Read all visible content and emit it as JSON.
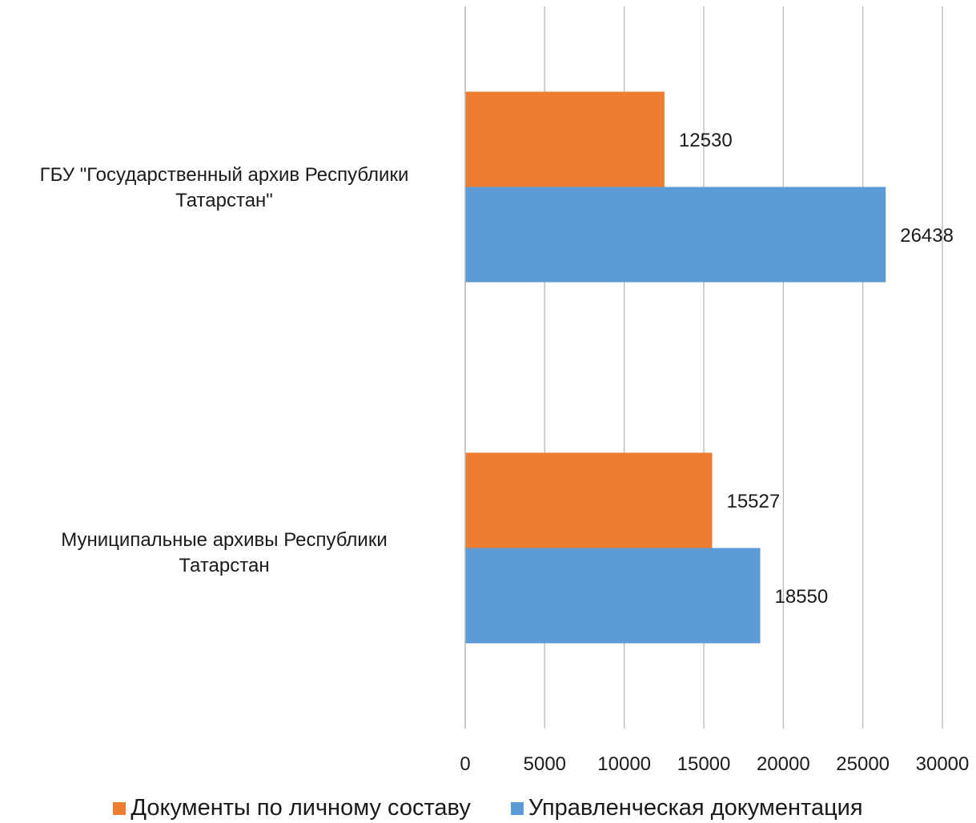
{
  "chart_data": {
    "type": "bar",
    "orientation": "horizontal",
    "categories": [
      [
        "ГБУ \"Государственный архив Республики",
        "Татарстан\""
      ],
      [
        "Муниципальные архивы Республики",
        "Татарстан"
      ]
    ],
    "series": [
      {
        "name": "Документы по личному составу",
        "color": "#ED7D31",
        "values": [
          12530,
          15527
        ]
      },
      {
        "name": "Управленческая документация",
        "color": "#5B9BD5",
        "values": [
          26438,
          18550
        ]
      }
    ],
    "xlim": [
      0,
      30000
    ],
    "xticks": [
      0,
      5000,
      10000,
      15000,
      20000,
      25000,
      30000
    ],
    "grid": "vertical",
    "legend": "bottom",
    "data_labels": true
  }
}
